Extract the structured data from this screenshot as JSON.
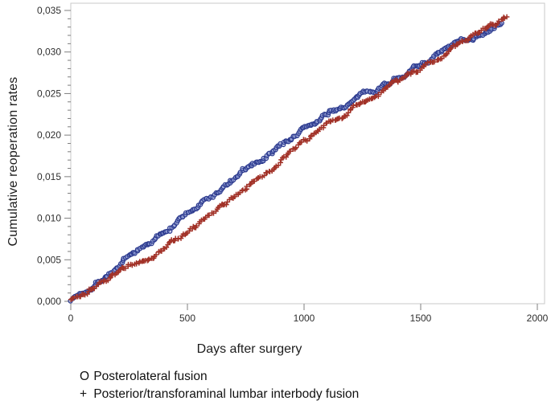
{
  "figure": {
    "background": "#ffffff",
    "frame_color": "#c9c9c9",
    "tick_color": "#7f7f7f",
    "tick_label_color": "#2e2e2e"
  },
  "legend": {
    "items": [
      {
        "symbol": "O",
        "label": "Posterolateral fusion"
      },
      {
        "symbol": "+",
        "label": "Posterior/transforaminal lumbar interbody fusion"
      }
    ]
  },
  "chart_data": {
    "type": "scatter",
    "title": "",
    "xlabel": "Days after surgery",
    "ylabel": "Cumulative reoperation rates",
    "xlim": [
      0,
      2000
    ],
    "ylim": [
      0,
      0.035
    ],
    "x_ticks": [
      0,
      500,
      1000,
      1500,
      2000
    ],
    "x_tick_labels": [
      "0",
      "500",
      "1000",
      "1500",
      "2000"
    ],
    "y_ticks": [
      0,
      0.005,
      0.01,
      0.015,
      0.02,
      0.025,
      0.03,
      0.035
    ],
    "y_tick_labels": [
      "0,000",
      "0,005",
      "0,010",
      "0,015",
      "0,020",
      "0,025",
      "0,030",
      "0,035"
    ],
    "y_minor_tick_step": 0.001,
    "grid": false,
    "legend_position": "below-left",
    "marker_density_days": 6,
    "series": [
      {
        "name": "Posterolateral fusion",
        "marker": "circle",
        "stroke": "#2c3a8e",
        "fill": "#8e9bd5",
        "x": [
          0,
          60,
          125,
          250,
          375,
          500,
          625,
          750,
          875,
          1000,
          1125,
          1250,
          1375,
          1500,
          1625,
          1750,
          1855
        ],
        "y": [
          0.0002,
          0.0013,
          0.0026,
          0.0052,
          0.0078,
          0.0106,
          0.013,
          0.0157,
          0.0182,
          0.0208,
          0.0228,
          0.0247,
          0.0266,
          0.0285,
          0.0305,
          0.0322,
          0.0334
        ]
      },
      {
        "name": "Posterior/transforaminal lumbar interbody fusion",
        "marker": "plus",
        "stroke": "#a23228",
        "x": [
          0,
          60,
          125,
          250,
          375,
          500,
          625,
          750,
          875,
          1000,
          1125,
          1250,
          1375,
          1500,
          1625,
          1750,
          1868
        ],
        "y": [
          0.0001,
          0.001,
          0.0021,
          0.0043,
          0.0062,
          0.0082,
          0.0108,
          0.0135,
          0.0164,
          0.0193,
          0.0216,
          0.024,
          0.026,
          0.028,
          0.0303,
          0.0328,
          0.0343
        ]
      }
    ]
  }
}
